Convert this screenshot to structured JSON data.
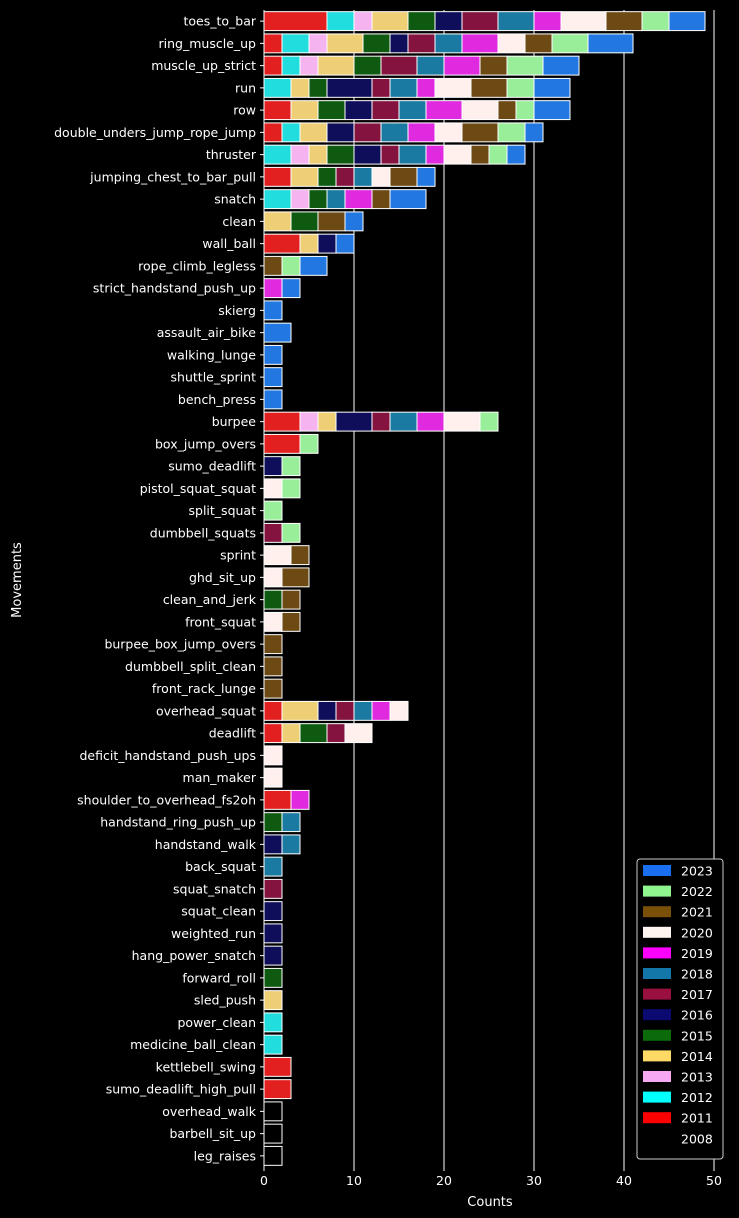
{
  "chart_data": {
    "type": "bar",
    "orientation": "horizontal",
    "stacked": true,
    "xlabel": "Counts",
    "ylabel": "Movements",
    "xlim": [
      0,
      51
    ],
    "xticks": [
      0,
      10,
      20,
      30,
      40,
      50
    ],
    "grid": "vertical",
    "legend_position": "bottom-right",
    "categories": [
      "toes_to_bar",
      "ring_muscle_up",
      "muscle_up_strict",
      "run",
      "row",
      "double_unders_jump_rope_jump",
      "thruster",
      "jumping_chest_to_bar_pull",
      "snatch",
      "clean",
      "wall_ball",
      "rope_climb_legless",
      "strict_handstand_push_up",
      "skierg",
      "assault_air_bike",
      "walking_lunge",
      "shuttle_sprint",
      "bench_press",
      "burpee",
      "box_jump_overs",
      "sumo_deadlift",
      "pistol_squat_squat",
      "split_squat",
      "dumbbell_squats",
      "sprint",
      "ghd_sit_up",
      "clean_and_jerk",
      "front_squat",
      "burpee_box_jump_overs",
      "dumbbell_split_clean",
      "front_rack_lunge",
      "overhead_squat",
      "deadlift",
      "deficit_handstand_push_ups",
      "man_maker",
      "shoulder_to_overhead_fs2oh",
      "handstand_ring_push_up",
      "handstand_walk",
      "back_squat",
      "squat_snatch",
      "squat_clean",
      "weighted_run",
      "hang_power_snatch",
      "forward_roll",
      "sled_push",
      "power_clean",
      "medicine_ball_clean",
      "kettlebell_swing",
      "sumo_deadlift_high_pull",
      "overhead_walk",
      "barbell_sit_up",
      "leg_raises"
    ],
    "series": [
      {
        "name": "2008",
        "color": "#000000",
        "values": [
          0,
          0,
          0,
          0,
          0,
          0,
          0,
          0,
          0,
          0,
          0,
          0,
          0,
          0,
          0,
          0,
          0,
          0,
          0,
          0,
          0,
          0,
          0,
          0,
          0,
          0,
          0,
          0,
          0,
          0,
          0,
          0,
          0,
          0,
          0,
          0,
          0,
          0,
          0,
          0,
          0,
          0,
          0,
          0,
          0,
          0,
          0,
          0,
          0,
          2,
          2,
          2
        ]
      },
      {
        "name": "2011",
        "color": "#e32020",
        "values": [
          7,
          2,
          2,
          0,
          3,
          2,
          0,
          3,
          0,
          0,
          4,
          0,
          0,
          0,
          0,
          0,
          0,
          0,
          4,
          4,
          0,
          0,
          0,
          0,
          0,
          0,
          0,
          0,
          0,
          0,
          0,
          2,
          2,
          0,
          0,
          3,
          0,
          0,
          0,
          0,
          0,
          0,
          0,
          0,
          0,
          0,
          0,
          3,
          3,
          0,
          0,
          0
        ]
      },
      {
        "name": "2012",
        "color": "#22dddd",
        "values": [
          3,
          3,
          2,
          3,
          0,
          2,
          3,
          0,
          3,
          0,
          0,
          0,
          0,
          0,
          0,
          0,
          0,
          0,
          0,
          0,
          0,
          0,
          0,
          0,
          0,
          0,
          0,
          0,
          0,
          0,
          0,
          0,
          0,
          0,
          0,
          0,
          0,
          0,
          0,
          0,
          0,
          0,
          0,
          0,
          0,
          2,
          2,
          0,
          0,
          0,
          0,
          0
        ]
      },
      {
        "name": "2013",
        "color": "#f5b3f0",
        "values": [
          2,
          2,
          2,
          0,
          0,
          0,
          2,
          0,
          2,
          0,
          0,
          0,
          0,
          0,
          0,
          0,
          0,
          0,
          2,
          0,
          0,
          0,
          0,
          0,
          0,
          0,
          0,
          0,
          0,
          0,
          0,
          0,
          0,
          0,
          0,
          0,
          0,
          0,
          0,
          0,
          0,
          0,
          0,
          0,
          0,
          0,
          0,
          0,
          0,
          0,
          0,
          0
        ]
      },
      {
        "name": "2014",
        "color": "#eecf75",
        "values": [
          4,
          4,
          4,
          2,
          3,
          3,
          2,
          3,
          0,
          3,
          2,
          0,
          0,
          0,
          0,
          0,
          0,
          0,
          2,
          0,
          0,
          0,
          0,
          0,
          0,
          0,
          0,
          0,
          0,
          0,
          0,
          4,
          2,
          0,
          0,
          0,
          0,
          0,
          0,
          0,
          0,
          0,
          0,
          0,
          2,
          0,
          0,
          0,
          0,
          0,
          0,
          0
        ]
      },
      {
        "name": "2015",
        "color": "#0e5a10",
        "values": [
          3,
          3,
          3,
          2,
          3,
          0,
          3,
          2,
          2,
          3,
          0,
          0,
          0,
          0,
          0,
          0,
          0,
          0,
          0,
          0,
          0,
          0,
          0,
          0,
          0,
          0,
          2,
          0,
          0,
          0,
          0,
          0,
          3,
          0,
          0,
          0,
          2,
          0,
          0,
          0,
          0,
          0,
          0,
          2,
          0,
          0,
          0,
          0,
          0,
          0,
          0,
          0
        ]
      },
      {
        "name": "2016",
        "color": "#0f0e5a",
        "values": [
          3,
          2,
          0,
          5,
          3,
          3,
          3,
          0,
          0,
          0,
          2,
          0,
          0,
          0,
          0,
          0,
          0,
          0,
          4,
          0,
          2,
          0,
          0,
          0,
          0,
          0,
          0,
          0,
          0,
          0,
          0,
          2,
          0,
          0,
          0,
          0,
          0,
          2,
          0,
          0,
          2,
          2,
          2,
          0,
          0,
          0,
          0,
          0,
          0,
          0,
          0,
          0
        ]
      },
      {
        "name": "2017",
        "color": "#84143f",
        "values": [
          4,
          3,
          4,
          2,
          3,
          3,
          2,
          2,
          0,
          0,
          0,
          0,
          0,
          0,
          0,
          0,
          0,
          0,
          2,
          0,
          0,
          0,
          0,
          2,
          0,
          0,
          0,
          0,
          0,
          0,
          0,
          2,
          2,
          0,
          0,
          0,
          0,
          0,
          0,
          2,
          0,
          0,
          0,
          0,
          0,
          0,
          0,
          0,
          0,
          0,
          0,
          0
        ]
      },
      {
        "name": "2018",
        "color": "#1a7aa2",
        "values": [
          4,
          3,
          3,
          3,
          3,
          3,
          3,
          2,
          2,
          0,
          0,
          0,
          0,
          0,
          0,
          0,
          0,
          0,
          3,
          0,
          0,
          0,
          0,
          0,
          0,
          0,
          0,
          0,
          0,
          0,
          0,
          2,
          0,
          0,
          0,
          0,
          2,
          2,
          2,
          0,
          0,
          0,
          0,
          0,
          0,
          0,
          0,
          0,
          0,
          0,
          0,
          0
        ]
      },
      {
        "name": "2019",
        "color": "#e02ae0",
        "values": [
          3,
          4,
          4,
          2,
          4,
          3,
          2,
          0,
          3,
          0,
          0,
          0,
          2,
          0,
          0,
          0,
          0,
          0,
          3,
          0,
          0,
          0,
          0,
          0,
          0,
          0,
          0,
          0,
          0,
          0,
          0,
          2,
          0,
          0,
          0,
          2,
          0,
          0,
          0,
          0,
          0,
          0,
          0,
          0,
          0,
          0,
          0,
          0,
          0,
          0,
          0,
          0
        ]
      },
      {
        "name": "2020",
        "color": "#fff0ee",
        "values": [
          5,
          3,
          0,
          4,
          4,
          3,
          3,
          2,
          0,
          0,
          0,
          0,
          0,
          0,
          0,
          0,
          0,
          0,
          4,
          0,
          0,
          2,
          0,
          0,
          3,
          2,
          0,
          2,
          0,
          0,
          0,
          2,
          3,
          2,
          2,
          0,
          0,
          0,
          0,
          0,
          0,
          0,
          0,
          0,
          0,
          0,
          0,
          0,
          0,
          0,
          0,
          0
        ]
      },
      {
        "name": "2021",
        "color": "#6d4a14",
        "values": [
          4,
          3,
          3,
          4,
          2,
          4,
          2,
          3,
          2,
          3,
          0,
          2,
          0,
          0,
          0,
          0,
          0,
          0,
          0,
          0,
          0,
          0,
          0,
          0,
          2,
          3,
          2,
          2,
          2,
          2,
          2,
          0,
          0,
          0,
          0,
          0,
          0,
          0,
          0,
          0,
          0,
          0,
          0,
          0,
          0,
          0,
          0,
          0,
          0,
          0,
          0,
          0
        ]
      },
      {
        "name": "2022",
        "color": "#99ee99",
        "values": [
          3,
          4,
          4,
          3,
          2,
          3,
          2,
          0,
          0,
          0,
          0,
          2,
          0,
          0,
          0,
          0,
          0,
          0,
          2,
          2,
          2,
          2,
          2,
          2,
          0,
          0,
          0,
          0,
          0,
          0,
          0,
          0,
          0,
          0,
          0,
          0,
          0,
          0,
          0,
          0,
          0,
          0,
          0,
          0,
          0,
          0,
          0,
          0,
          0,
          0,
          0,
          0
        ]
      },
      {
        "name": "2023",
        "color": "#2277e0",
        "values": [
          4,
          5,
          4,
          4,
          4,
          2,
          2,
          2,
          4,
          2,
          2,
          3,
          2,
          2,
          3,
          2,
          2,
          2,
          0,
          0,
          0,
          0,
          0,
          0,
          0,
          0,
          0,
          0,
          0,
          0,
          0,
          0,
          0,
          0,
          0,
          0,
          0,
          0,
          0,
          0,
          0,
          0,
          0,
          0,
          0,
          0,
          0,
          0,
          0,
          0,
          0,
          0
        ]
      }
    ],
    "legend_order": [
      "2023",
      "2022",
      "2021",
      "2020",
      "2019",
      "2018",
      "2017",
      "2016",
      "2015",
      "2014",
      "2013",
      "2012",
      "2011",
      "2008"
    ],
    "legend_colors": {
      "2023": "#1a6ff0",
      "2022": "#8ff58f",
      "2021": "#7a4f08",
      "2020": "#fff5f0",
      "2019": "#ff00ff",
      "2018": "#1477aa",
      "2017": "#990f40",
      "2016": "#0a0a70",
      "2015": "#0b6b0b",
      "2014": "#ffd966",
      "2013": "#f7a8f3",
      "2012": "#00ffff",
      "2011": "#ff0000",
      "2008": "#000000"
    }
  }
}
